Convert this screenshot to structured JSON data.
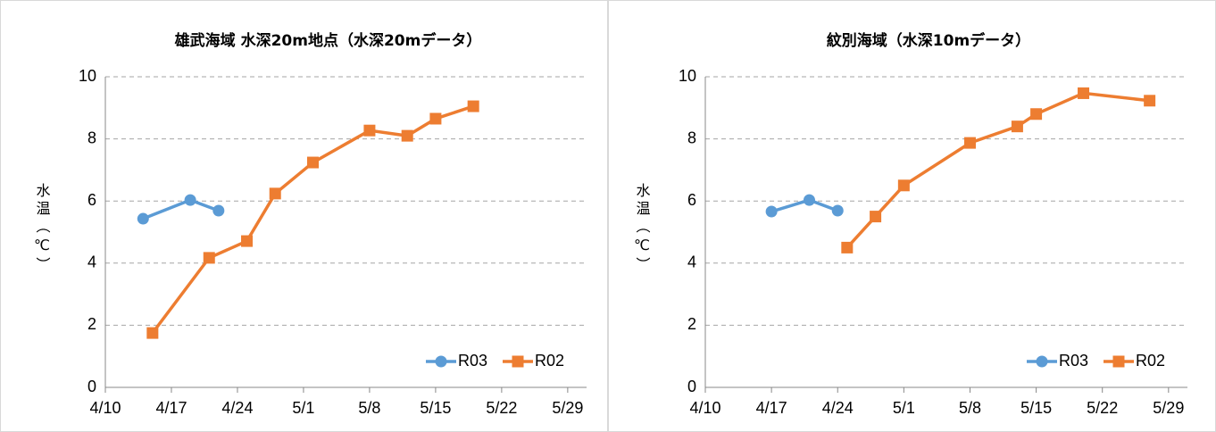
{
  "charts": [
    {
      "type": "line",
      "title": "雄武海域 水深20m地点（水深20mデータ）",
      "y_label": "水温（℃）",
      "xlim": [
        "4/10",
        "5/31"
      ],
      "xticks": [
        "4/10",
        "4/17",
        "4/24",
        "5/1",
        "5/8",
        "5/15",
        "5/22",
        "5/29"
      ],
      "ylim": [
        0,
        10
      ],
      "yticks": [
        0,
        2,
        4,
        6,
        8,
        10
      ],
      "grid": true,
      "legend": "lower right",
      "series": [
        {
          "name": "R03",
          "color": "#5b9bd5",
          "marker": "circle",
          "x": [
            "4/14",
            "4/19",
            "4/22"
          ],
          "values": [
            5.43,
            6.03,
            5.69
          ]
        },
        {
          "name": "R02",
          "color": "#ed7d31",
          "marker": "square",
          "x": [
            "4/15",
            "4/21",
            "4/25",
            "4/28",
            "5/2",
            "5/8",
            "5/12",
            "5/15",
            "5/19"
          ],
          "values": [
            1.75,
            4.17,
            4.71,
            6.24,
            7.24,
            8.27,
            8.1,
            8.65,
            9.05
          ]
        }
      ]
    },
    {
      "type": "line",
      "title": "紋別海域（水深10mデータ）",
      "y_label": "水温（℃）",
      "xlim": [
        "4/10",
        "5/31"
      ],
      "xticks": [
        "4/10",
        "4/17",
        "4/24",
        "5/1",
        "5/8",
        "5/15",
        "5/22",
        "5/29"
      ],
      "ylim": [
        0,
        10
      ],
      "yticks": [
        0,
        2,
        4,
        6,
        8,
        10
      ],
      "grid": true,
      "legend": "lower right",
      "series": [
        {
          "name": "R03",
          "color": "#5b9bd5",
          "marker": "circle",
          "x": [
            "4/17",
            "4/21",
            "4/24"
          ],
          "values": [
            5.66,
            6.03,
            5.69
          ]
        },
        {
          "name": "R02",
          "color": "#ed7d31",
          "marker": "square",
          "x": [
            "4/25",
            "4/28",
            "5/1",
            "5/8",
            "5/13",
            "5/15",
            "5/20",
            "5/27"
          ],
          "values": [
            4.5,
            5.5,
            6.5,
            7.87,
            8.4,
            8.8,
            9.47,
            9.23
          ]
        }
      ]
    }
  ]
}
